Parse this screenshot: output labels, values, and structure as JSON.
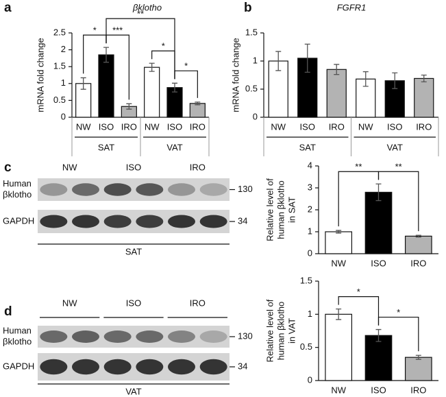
{
  "chart_data": [
    {
      "type": "bar",
      "panel": "a",
      "title": "βklotho",
      "ylabel": "mRNA fold change",
      "categories": [
        "NW",
        "ISO",
        "IRO",
        "NW",
        "ISO",
        "IRO"
      ],
      "groups": [
        "SAT",
        "VAT"
      ],
      "values": [
        1.0,
        1.85,
        0.32,
        1.48,
        0.88,
        0.41
      ],
      "errors": [
        0.17,
        0.22,
        0.08,
        0.12,
        0.13,
        0.04
      ],
      "colors": [
        "#ffffff",
        "#000000",
        "#b3b3b3",
        "#ffffff",
        "#000000",
        "#b3b3b3"
      ],
      "ylim": [
        0,
        2.5
      ],
      "yticks": [
        0,
        0.5,
        1,
        1.5,
        2,
        2.5
      ],
      "annotations": [
        {
          "text": "*",
          "from": 0,
          "to": 1
        },
        {
          "text": "***",
          "from": 1,
          "to": 2
        },
        {
          "text": "**",
          "from": 1,
          "to": 4
        },
        {
          "text": "*",
          "from": 3,
          "to": 4
        },
        {
          "text": "*",
          "from": 4,
          "to": 5
        }
      ]
    },
    {
      "type": "bar",
      "panel": "b",
      "title": "FGFR1",
      "ylabel": "mRNA fold change",
      "categories": [
        "NW",
        "ISO",
        "IRO",
        "NW",
        "ISO",
        "IRO"
      ],
      "groups": [
        "SAT",
        "VAT"
      ],
      "values": [
        1.0,
        1.05,
        0.85,
        0.68,
        0.65,
        0.69
      ],
      "errors": [
        0.17,
        0.25,
        0.09,
        0.13,
        0.14,
        0.06
      ],
      "colors": [
        "#ffffff",
        "#000000",
        "#b3b3b3",
        "#ffffff",
        "#000000",
        "#b3b3b3"
      ],
      "ylim": [
        0,
        1.5
      ],
      "yticks": [
        0,
        0.5,
        1,
        1.5
      ]
    },
    {
      "type": "bar",
      "panel": "c",
      "ylabel": [
        "Relative level of",
        "human βklotho",
        "in SAT"
      ],
      "categories": [
        "NW",
        "ISO",
        "IRO"
      ],
      "values": [
        1.0,
        2.8,
        0.8
      ],
      "errors": [
        0.06,
        0.38,
        0.04
      ],
      "colors": [
        "#ffffff",
        "#000000",
        "#b3b3b3"
      ],
      "ylim": [
        0,
        4
      ],
      "yticks": [
        0,
        1,
        2,
        3,
        4
      ],
      "annotations": [
        {
          "text": "**",
          "from": 0,
          "to": 1
        },
        {
          "text": "**",
          "from": 1,
          "to": 2
        }
      ]
    },
    {
      "type": "bar",
      "panel": "d",
      "ylabel": [
        "Relative level of",
        "human βklotho",
        "in VAT"
      ],
      "categories": [
        "NW",
        "ISO",
        "IRO"
      ],
      "values": [
        1.0,
        0.68,
        0.35
      ],
      "errors": [
        0.08,
        0.09,
        0.03
      ],
      "colors": [
        "#ffffff",
        "#000000",
        "#b3b3b3"
      ],
      "ylim": [
        0,
        1.5
      ],
      "yticks": [
        0,
        0.5,
        1,
        1.5
      ],
      "annotations": [
        {
          "text": "*",
          "from": 0,
          "to": 1
        },
        {
          "text": "*",
          "from": 1,
          "to": 2
        }
      ]
    }
  ],
  "blots": [
    {
      "lanes": [
        "NW",
        "ISO",
        "IRO"
      ],
      "rows": [
        {
          "label": [
            "Human",
            "βklotho"
          ],
          "marker": "130"
        },
        {
          "label": [
            "GAPDH"
          ],
          "marker": "34"
        }
      ],
      "tissue": "SAT"
    },
    {
      "lanes": [
        "NW",
        "ISO",
        "IRO"
      ],
      "rows": [
        {
          "label": [
            "Human",
            "βklotho"
          ],
          "marker": "130"
        },
        {
          "label": [
            "GAPDH"
          ],
          "marker": "34"
        }
      ],
      "tissue": "VAT"
    }
  ]
}
